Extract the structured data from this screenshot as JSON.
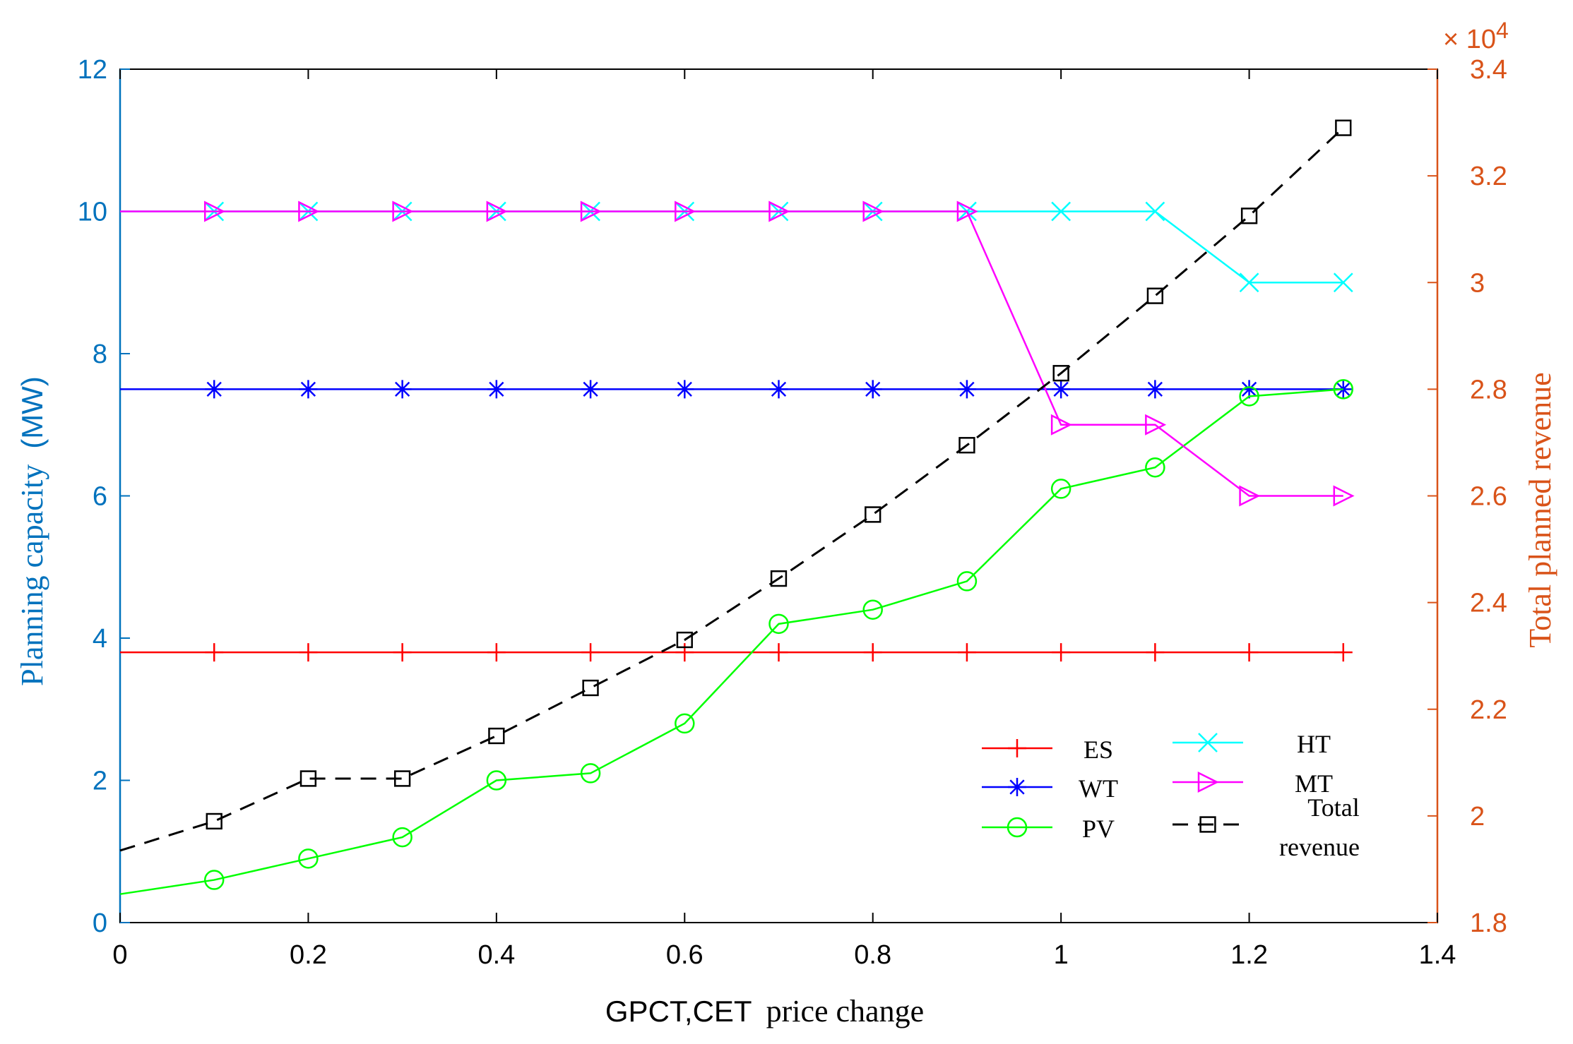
{
  "chart_data": {
    "type": "line",
    "xlabel_parts": [
      "GPCT,CET",
      "price change"
    ],
    "ylabel_left_parts": [
      "Planning capacity",
      "(MW)"
    ],
    "ylabel_right": "Total planned revenue",
    "exponent_label": "× 10",
    "exponent_power": "4",
    "xlim": [
      0,
      1.4
    ],
    "ylim_left": [
      0,
      12
    ],
    "ylim_right": [
      1.8,
      3.4
    ],
    "x_ticks": [
      "0",
      "0.2",
      "0.4",
      "0.6",
      "0.8",
      "1",
      "1.2",
      "1.4"
    ],
    "y_left_ticks": [
      "0",
      "2",
      "4",
      "6",
      "8",
      "10",
      "12"
    ],
    "y_right_ticks": [
      "1.8",
      "2",
      "2.2",
      "2.4",
      "2.6",
      "2.8",
      "3",
      "3.2",
      "3.4"
    ],
    "colors": {
      "left_axis": "#0072BD",
      "right_axis": "#D95319",
      "ES": "#FF0000",
      "WT": "#0000FF",
      "PV": "#00FF00",
      "HT": "#00FFFF",
      "MT": "#FF00FF",
      "Total": "#000000"
    },
    "series": [
      {
        "name": "ES",
        "axis": "left",
        "marker": "plus",
        "dash": false,
        "x": [
          0,
          0.1,
          0.2,
          0.3,
          0.4,
          0.5,
          0.6,
          0.7,
          0.8,
          0.9,
          1.0,
          1.1,
          1.2,
          1.3
        ],
        "values": [
          3.8,
          3.8,
          3.8,
          3.8,
          3.8,
          3.8,
          3.8,
          3.8,
          3.8,
          3.8,
          3.8,
          3.8,
          3.8,
          3.8
        ]
      },
      {
        "name": "WT",
        "axis": "left",
        "marker": "asterisk",
        "dash": false,
        "x": [
          0,
          0.1,
          0.2,
          0.3,
          0.4,
          0.5,
          0.6,
          0.7,
          0.8,
          0.9,
          1.0,
          1.1,
          1.2,
          1.3
        ],
        "values": [
          7.5,
          7.5,
          7.5,
          7.5,
          7.5,
          7.5,
          7.5,
          7.5,
          7.5,
          7.5,
          7.5,
          7.5,
          7.5,
          7.5
        ]
      },
      {
        "name": "PV",
        "axis": "left",
        "marker": "circle",
        "dash": false,
        "x": [
          0,
          0.1,
          0.2,
          0.3,
          0.4,
          0.5,
          0.6,
          0.7,
          0.8,
          0.9,
          1.0,
          1.1,
          1.2,
          1.3
        ],
        "values": [
          0.4,
          0.6,
          0.9,
          1.2,
          2.0,
          2.1,
          2.8,
          4.2,
          4.4,
          4.8,
          6.1,
          6.4,
          7.4,
          7.5
        ]
      },
      {
        "name": "HT",
        "axis": "left",
        "marker": "x",
        "dash": false,
        "x": [
          0,
          0.1,
          0.2,
          0.3,
          0.4,
          0.5,
          0.6,
          0.7,
          0.8,
          0.9,
          1.0,
          1.1,
          1.2,
          1.3
        ],
        "values": [
          10,
          10,
          10,
          10,
          10,
          10,
          10,
          10,
          10,
          10,
          10,
          10,
          9,
          9
        ]
      },
      {
        "name": "MT",
        "axis": "left",
        "marker": "triangle-right",
        "dash": false,
        "x": [
          0,
          0.1,
          0.2,
          0.3,
          0.4,
          0.5,
          0.6,
          0.7,
          0.8,
          0.9,
          1.0,
          1.1,
          1.2,
          1.3
        ],
        "values": [
          10,
          10,
          10,
          10,
          10,
          10,
          10,
          10,
          10,
          10,
          7,
          7,
          6,
          6
        ]
      },
      {
        "name": "Total revenue",
        "axis": "right",
        "marker": "square",
        "dash": true,
        "x": [
          0,
          0.1,
          0.2,
          0.3,
          0.4,
          0.5,
          0.6,
          0.7,
          0.8,
          0.9,
          1.0,
          1.1,
          1.2,
          1.3
        ],
        "values": [
          1.935,
          1.99,
          2.07,
          2.07,
          2.15,
          2.24,
          2.33,
          2.445,
          2.565,
          2.695,
          2.83,
          2.975,
          3.125,
          3.29
        ]
      }
    ],
    "legend": {
      "placement": "lower-right",
      "entries": [
        {
          "label": "ES",
          "series": "ES"
        },
        {
          "label": "WT",
          "series": "WT"
        },
        {
          "label": "PV",
          "series": "PV"
        },
        {
          "label": "HT",
          "series": "HT"
        },
        {
          "label": "MT",
          "series": "MT"
        },
        {
          "label_lines": [
            "Total",
            "revenue"
          ],
          "series": "Total revenue"
        }
      ]
    }
  }
}
